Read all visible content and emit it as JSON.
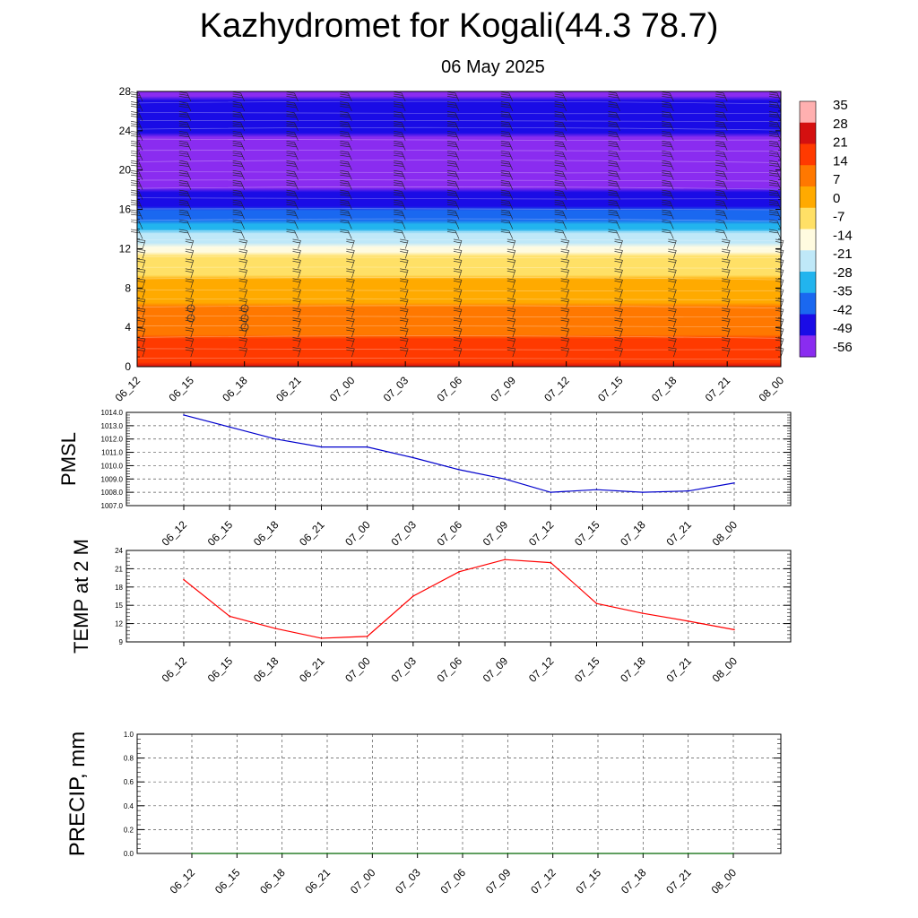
{
  "title": "Kazhydromet for Kogali(44.3 78.7)",
  "subtitle": "06 May 2025",
  "chart_data": [
    {
      "type": "heatmap",
      "name": "vertical-cross-section",
      "x_ticks": [
        "06_12",
        "06_15",
        "06_18",
        "06_21",
        "07_00",
        "07_03",
        "07_06",
        "07_09",
        "07_12",
        "07_15",
        "07_18",
        "07_21",
        "08_00"
      ],
      "y_ticks": [
        0,
        4,
        8,
        12,
        16,
        20,
        24,
        28
      ],
      "ylim": [
        0,
        28
      ],
      "colorbar_labels": [
        "35",
        "28",
        "21",
        "14",
        "7",
        "0",
        "-7",
        "-14",
        "-21",
        "-28",
        "-35",
        "-42",
        "-49",
        "-56"
      ],
      "colorbar_range": [
        -60,
        38
      ],
      "temperature_profile": [
        {
          "level": 0,
          "value": 22
        },
        {
          "level": 4,
          "value": 10
        },
        {
          "level": 8,
          "value": 2
        },
        {
          "level": 11,
          "value": -9
        },
        {
          "level": 12,
          "value": -16
        },
        {
          "level": 14,
          "value": -30
        },
        {
          "level": 16,
          "value": -43
        },
        {
          "level": 18,
          "value": -53
        },
        {
          "level": 20,
          "value": -58
        },
        {
          "level": 22,
          "value": -55
        },
        {
          "level": 24,
          "value": -51
        },
        {
          "level": 28,
          "value": -52
        }
      ],
      "colors": [
        "#ffb0b0",
        "#d41010",
        "#ff3a00",
        "#ff7800",
        "#ffaa00",
        "#ffe066",
        "#fffbe0",
        "#bfe8f8",
        "#22b4ee",
        "#1a68f0",
        "#1a0ce6",
        "#8a2cf0"
      ]
    },
    {
      "type": "line",
      "name": "pmsl",
      "ylabel": "PMSL",
      "categories": [
        "06_12",
        "06_15",
        "06_18",
        "06_21",
        "07_00",
        "07_03",
        "07_06",
        "07_09",
        "07_12",
        "07_15",
        "07_18",
        "07_21",
        "08_00"
      ],
      "y_ticks": [
        "1007.0",
        "1008.0",
        "1009.0",
        "1010.0",
        "1011.0",
        "1012.0",
        "1013.0",
        "1014.0"
      ],
      "ylim": [
        1007.0,
        1014.0
      ],
      "series": [
        {
          "values": [
            1013.8,
            1012.9,
            1012.0,
            1011.4,
            1011.4,
            1010.6,
            1009.7,
            1009.0,
            1008.0,
            1008.2,
            1008.0,
            1008.1,
            1008.7
          ],
          "color": "#0000cc"
        }
      ]
    },
    {
      "type": "line",
      "name": "temp2m",
      "ylabel": "TEMP at 2 M",
      "categories": [
        "06_12",
        "06_15",
        "06_18",
        "06_21",
        "07_00",
        "07_03",
        "07_06",
        "07_09",
        "07_12",
        "07_15",
        "07_18",
        "07_21",
        "08_00"
      ],
      "y_ticks": [
        "9",
        "12",
        "15",
        "18",
        "21",
        "24"
      ],
      "ylim": [
        9,
        24
      ],
      "series": [
        {
          "values": [
            19.2,
            13.2,
            11.2,
            9.6,
            9.9,
            16.5,
            20.5,
            22.5,
            22.0,
            15.3,
            13.7,
            12.4,
            11.0
          ],
          "color": "#ff0000"
        }
      ]
    },
    {
      "type": "line",
      "name": "precip",
      "ylabel": "PRECIP, mm",
      "categories": [
        "06_12",
        "06_15",
        "06_18",
        "06_21",
        "07_00",
        "07_03",
        "07_06",
        "07_09",
        "07_12",
        "07_15",
        "07_18",
        "07_21",
        "08_00"
      ],
      "y_ticks": [
        "0.0",
        "0.2",
        "0.4",
        "0.6",
        "0.8",
        "1.0"
      ],
      "ylim": [
        0,
        1.0
      ],
      "series": [
        {
          "values": [
            0,
            0,
            0,
            0,
            0,
            0,
            0,
            0,
            0,
            0,
            0,
            0,
            0
          ],
          "color": "#006600"
        }
      ]
    }
  ]
}
